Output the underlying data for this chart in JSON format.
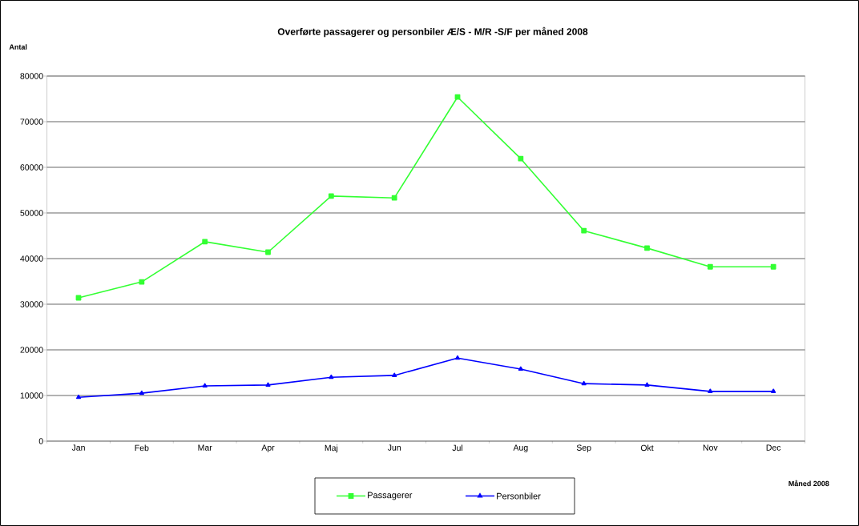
{
  "chart_data": {
    "type": "line",
    "title": "Overførte passagerer og personbiler Æ/S - M/R -S/F per måned 2008",
    "ylabel": "Antal",
    "xlabel": "Måned 2008",
    "categories": [
      "Jan",
      "Feb",
      "Mar",
      "Apr",
      "Maj",
      "Jun",
      "Jul",
      "Aug",
      "Sep",
      "Okt",
      "Nov",
      "Dec"
    ],
    "series": [
      {
        "name": "Passagerer",
        "color": "#33ff33",
        "marker": "square",
        "values": [
          31400,
          34900,
          43700,
          41400,
          53700,
          53300,
          75400,
          61900,
          46100,
          42300,
          38200,
          38200
        ]
      },
      {
        "name": "Personbiler",
        "color": "#0000ff",
        "marker": "triangle",
        "values": [
          9600,
          10500,
          12100,
          12300,
          14000,
          14400,
          18200,
          15800,
          12600,
          12300,
          10900,
          10900
        ]
      }
    ],
    "ylim": [
      0,
      80000
    ],
    "yticks": [
      0,
      10000,
      20000,
      30000,
      40000,
      50000,
      60000,
      70000,
      80000
    ],
    "grid": "y",
    "legend": "bottom"
  }
}
